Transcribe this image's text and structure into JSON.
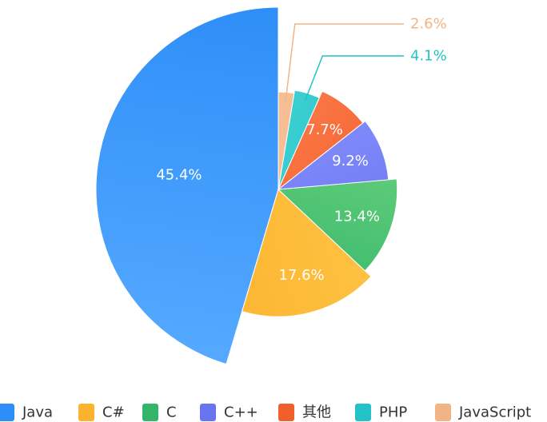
{
  "chart_data": {
    "type": "pie",
    "variant": "rose",
    "title": "",
    "slices": [
      {
        "name": "Java",
        "value": 45.4,
        "label": "45.4%",
        "color": "#2e8ef8",
        "color_light": "#55a9ff"
      },
      {
        "name": "C#",
        "value": 17.6,
        "label": "17.6%",
        "color": "#fbb22c",
        "color_light": "#ffc648"
      },
      {
        "name": "C",
        "value": 13.4,
        "label": "13.4%",
        "color": "#33b66a",
        "color_light": "#6fd37e"
      },
      {
        "name": "C++",
        "value": 9.2,
        "label": "9.2%",
        "color": "#6874f0",
        "color_light": "#8c95ff"
      },
      {
        "name": "其他",
        "value": 7.7,
        "label": "7.7%",
        "color": "#f05f2c",
        "color_light": "#ff8452"
      },
      {
        "name": "PHP",
        "value": 4.1,
        "label": "4.1%",
        "color": "#22c2c6",
        "color_light": "#4fd8db"
      },
      {
        "name": "JavaScript",
        "value": 2.6,
        "label": "2.6%",
        "color": "#f2b486",
        "color_light": "#f8c9a4"
      }
    ],
    "legend_position": "bottom"
  }
}
